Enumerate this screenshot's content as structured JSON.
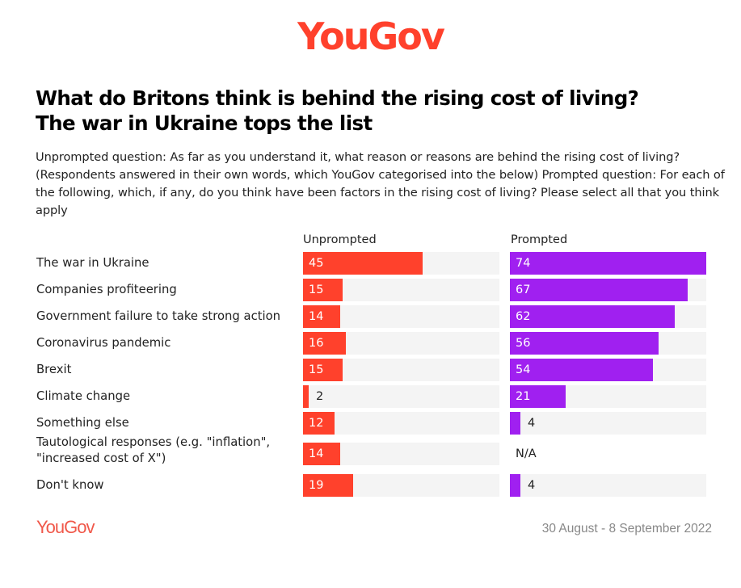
{
  "header": {
    "logo": "YouGov",
    "title_line1": "What do Britons think is behind the rising cost of living?",
    "title_line2": "The war in Ukraine tops the list",
    "subtitle": "Unprompted question: As far as you understand it, what reason or reasons are behind the rising cost of living? (Respondents answered in their own words, which YouGov categorised into the below) Prompted question: For each of the following, which, if any, do you think have been factors in the rising cost of living? Please select all that you think apply"
  },
  "footer": {
    "logo": "YouGov",
    "date": "30 August - 8 September 2022"
  },
  "colors": {
    "unprompted": "#ff412c",
    "prompted": "#a020f0",
    "track": "#f4f4f4"
  },
  "chart_data": {
    "type": "bar",
    "orientation": "horizontal",
    "title": "What do Britons think is behind the rising cost of living? The war in Ukraine tops the list",
    "xlim": [
      0,
      74
    ],
    "categories": [
      "The war in Ukraine",
      "Companies profiteering",
      "Government failure to take strong action",
      "Coronavirus pandemic",
      "Brexit",
      "Climate change",
      "Something else",
      "Tautological responses (e.g. \"inflation\", \"increased cost of X\")",
      "Don't know"
    ],
    "series": [
      {
        "name": "Unprompted",
        "color": "#ff412c",
        "values": [
          45,
          15,
          14,
          16,
          15,
          2,
          12,
          14,
          19
        ]
      },
      {
        "name": "Prompted",
        "color": "#a020f0",
        "values": [
          74,
          67,
          62,
          56,
          54,
          21,
          4,
          null,
          4
        ]
      }
    ],
    "na_label": "N/A",
    "unit": "%"
  }
}
